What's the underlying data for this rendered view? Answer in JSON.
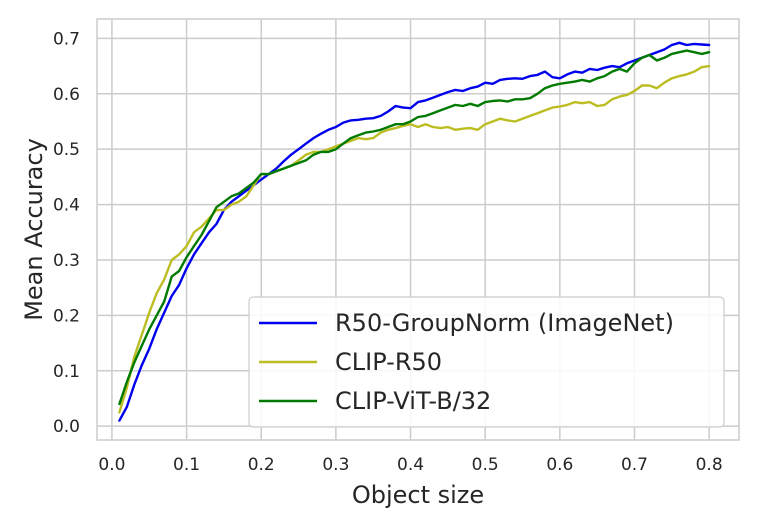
{
  "chart_data": {
    "type": "line",
    "title": "",
    "xlabel": "Object size",
    "ylabel": "Mean Accuracy",
    "xlim": [
      -0.02,
      0.84
    ],
    "ylim": [
      -0.025,
      0.735
    ],
    "xticks": [
      0.0,
      0.1,
      0.2,
      0.3,
      0.4,
      0.5,
      0.6,
      0.7,
      0.8
    ],
    "xtick_labels": [
      "0.0",
      "0.1",
      "0.2",
      "0.3",
      "0.4",
      "0.5",
      "0.6",
      "0.7",
      "0.8"
    ],
    "yticks": [
      0.0,
      0.1,
      0.2,
      0.3,
      0.4,
      0.5,
      0.6,
      0.7
    ],
    "ytick_labels": [
      "0.0",
      "0.1",
      "0.2",
      "0.3",
      "0.4",
      "0.5",
      "0.6",
      "0.7"
    ],
    "grid": true,
    "legend_position": "bottom-right",
    "x": [
      0.01,
      0.02,
      0.03,
      0.04,
      0.05,
      0.06,
      0.07,
      0.08,
      0.09,
      0.1,
      0.11,
      0.12,
      0.13,
      0.14,
      0.15,
      0.16,
      0.17,
      0.18,
      0.19,
      0.2,
      0.21,
      0.22,
      0.23,
      0.24,
      0.25,
      0.26,
      0.27,
      0.28,
      0.29,
      0.3,
      0.31,
      0.32,
      0.33,
      0.34,
      0.35,
      0.36,
      0.37,
      0.38,
      0.39,
      0.4,
      0.41,
      0.42,
      0.43,
      0.44,
      0.45,
      0.46,
      0.47,
      0.48,
      0.49,
      0.5,
      0.51,
      0.52,
      0.53,
      0.54,
      0.55,
      0.56,
      0.57,
      0.58,
      0.59,
      0.6,
      0.61,
      0.62,
      0.63,
      0.64,
      0.65,
      0.66,
      0.67,
      0.68,
      0.69,
      0.7,
      0.71,
      0.72,
      0.73,
      0.74,
      0.75,
      0.76,
      0.77,
      0.78,
      0.79,
      0.8
    ],
    "series": [
      {
        "name": "R50-GroupNorm (ImageNet)",
        "color": "#0000ee",
        "values": [
          0.01,
          0.035,
          0.075,
          0.11,
          0.14,
          0.175,
          0.205,
          0.235,
          0.255,
          0.285,
          0.31,
          0.33,
          0.35,
          0.365,
          0.39,
          0.405,
          0.415,
          0.425,
          0.435,
          0.445,
          0.455,
          0.465,
          0.478,
          0.49,
          0.5,
          0.51,
          0.52,
          0.528,
          0.535,
          0.54,
          0.548,
          0.552,
          0.553,
          0.555,
          0.556,
          0.56,
          0.568,
          0.578,
          0.575,
          0.574,
          0.585,
          0.588,
          0.593,
          0.598,
          0.603,
          0.607,
          0.605,
          0.61,
          0.613,
          0.62,
          0.618,
          0.625,
          0.627,
          0.628,
          0.627,
          0.632,
          0.634,
          0.64,
          0.63,
          0.628,
          0.635,
          0.64,
          0.638,
          0.645,
          0.643,
          0.647,
          0.65,
          0.648,
          0.655,
          0.66,
          0.665,
          0.67,
          0.675,
          0.68,
          0.688,
          0.692,
          0.688,
          0.69,
          0.689,
          0.688
        ]
      },
      {
        "name": "CLIP-R50",
        "color": "#bcbd22",
        "values": [
          0.025,
          0.07,
          0.125,
          0.165,
          0.205,
          0.24,
          0.265,
          0.3,
          0.31,
          0.325,
          0.35,
          0.36,
          0.375,
          0.39,
          0.39,
          0.4,
          0.405,
          0.415,
          0.435,
          0.455,
          0.455,
          0.46,
          0.465,
          0.47,
          0.48,
          0.49,
          0.495,
          0.495,
          0.5,
          0.505,
          0.51,
          0.515,
          0.52,
          0.518,
          0.52,
          0.53,
          0.535,
          0.538,
          0.542,
          0.545,
          0.54,
          0.545,
          0.54,
          0.538,
          0.54,
          0.535,
          0.537,
          0.538,
          0.535,
          0.545,
          0.55,
          0.555,
          0.552,
          0.55,
          0.555,
          0.56,
          0.565,
          0.57,
          0.575,
          0.577,
          0.58,
          0.585,
          0.583,
          0.585,
          0.578,
          0.58,
          0.59,
          0.595,
          0.598,
          0.605,
          0.615,
          0.615,
          0.61,
          0.62,
          0.628,
          0.632,
          0.635,
          0.64,
          0.648,
          0.65
        ]
      },
      {
        "name": "CLIP-ViT-B/32",
        "color": "#007a00",
        "values": [
          0.04,
          0.08,
          0.115,
          0.145,
          0.175,
          0.2,
          0.225,
          0.27,
          0.28,
          0.305,
          0.325,
          0.345,
          0.37,
          0.395,
          0.405,
          0.415,
          0.42,
          0.43,
          0.44,
          0.455,
          0.455,
          0.46,
          0.465,
          0.47,
          0.475,
          0.48,
          0.49,
          0.495,
          0.495,
          0.5,
          0.51,
          0.52,
          0.525,
          0.53,
          0.532,
          0.535,
          0.54,
          0.545,
          0.545,
          0.55,
          0.558,
          0.56,
          0.565,
          0.57,
          0.575,
          0.58,
          0.578,
          0.582,
          0.578,
          0.585,
          0.587,
          0.588,
          0.586,
          0.59,
          0.59,
          0.592,
          0.6,
          0.61,
          0.615,
          0.618,
          0.62,
          0.622,
          0.625,
          0.622,
          0.628,
          0.632,
          0.64,
          0.645,
          0.64,
          0.655,
          0.665,
          0.67,
          0.66,
          0.665,
          0.672,
          0.675,
          0.678,
          0.675,
          0.672,
          0.675
        ]
      }
    ]
  }
}
